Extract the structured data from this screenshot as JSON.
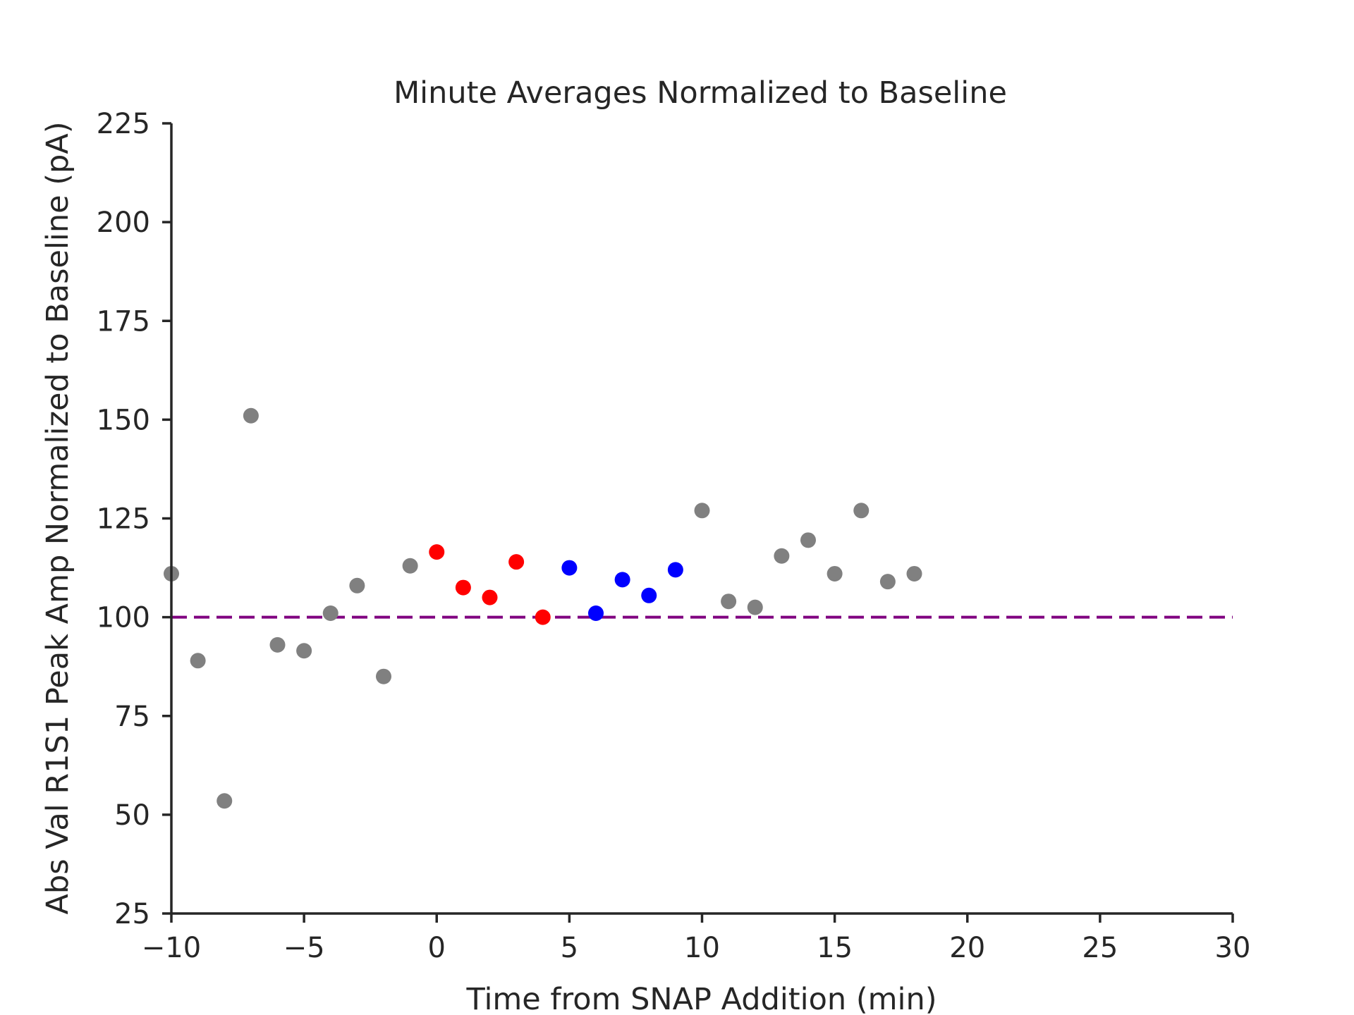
{
  "chart_data": {
    "type": "scatter",
    "title": "Minute Averages Normalized to Baseline",
    "xlabel": "Time from SNAP Addition (min)",
    "ylabel": "Abs Val R1S1 Peak Amp Normalized to Baseline (pA)",
    "xlim": [
      -10,
      30
    ],
    "ylim": [
      25,
      225
    ],
    "xticks": [
      -10,
      -5,
      0,
      5,
      10,
      15,
      20,
      25,
      30
    ],
    "xtick_labels": [
      "−10",
      "−5",
      "0",
      "5",
      "10",
      "15",
      "20",
      "25",
      "30"
    ],
    "yticks": [
      25,
      50,
      75,
      100,
      125,
      150,
      175,
      200,
      225
    ],
    "ytick_labels": [
      "25",
      "50",
      "75",
      "100",
      "125",
      "150",
      "175",
      "200",
      "225"
    ],
    "grid": false,
    "baseline": {
      "y": 100,
      "color": "#800080",
      "style": "dashed"
    },
    "series": [
      {
        "color": "#808080",
        "x": [
          -10,
          -9,
          -8,
          -7,
          -6,
          -5,
          -4,
          -3,
          -2,
          -1,
          10,
          11,
          12,
          13,
          14,
          15,
          16,
          17,
          18
        ],
        "y": [
          111,
          89,
          53.5,
          151,
          93,
          91.5,
          101,
          108,
          85,
          113,
          127,
          104,
          102.5,
          115.5,
          119.5,
          111,
          127,
          109,
          111
        ]
      },
      {
        "color": "#ff0000",
        "x": [
          0,
          1,
          2,
          3,
          4
        ],
        "y": [
          116.5,
          107.5,
          105,
          114,
          100
        ]
      },
      {
        "color": "#0000ff",
        "x": [
          5,
          6,
          7,
          8,
          9
        ],
        "y": [
          112.5,
          101,
          109.5,
          105.5,
          112
        ]
      }
    ]
  }
}
